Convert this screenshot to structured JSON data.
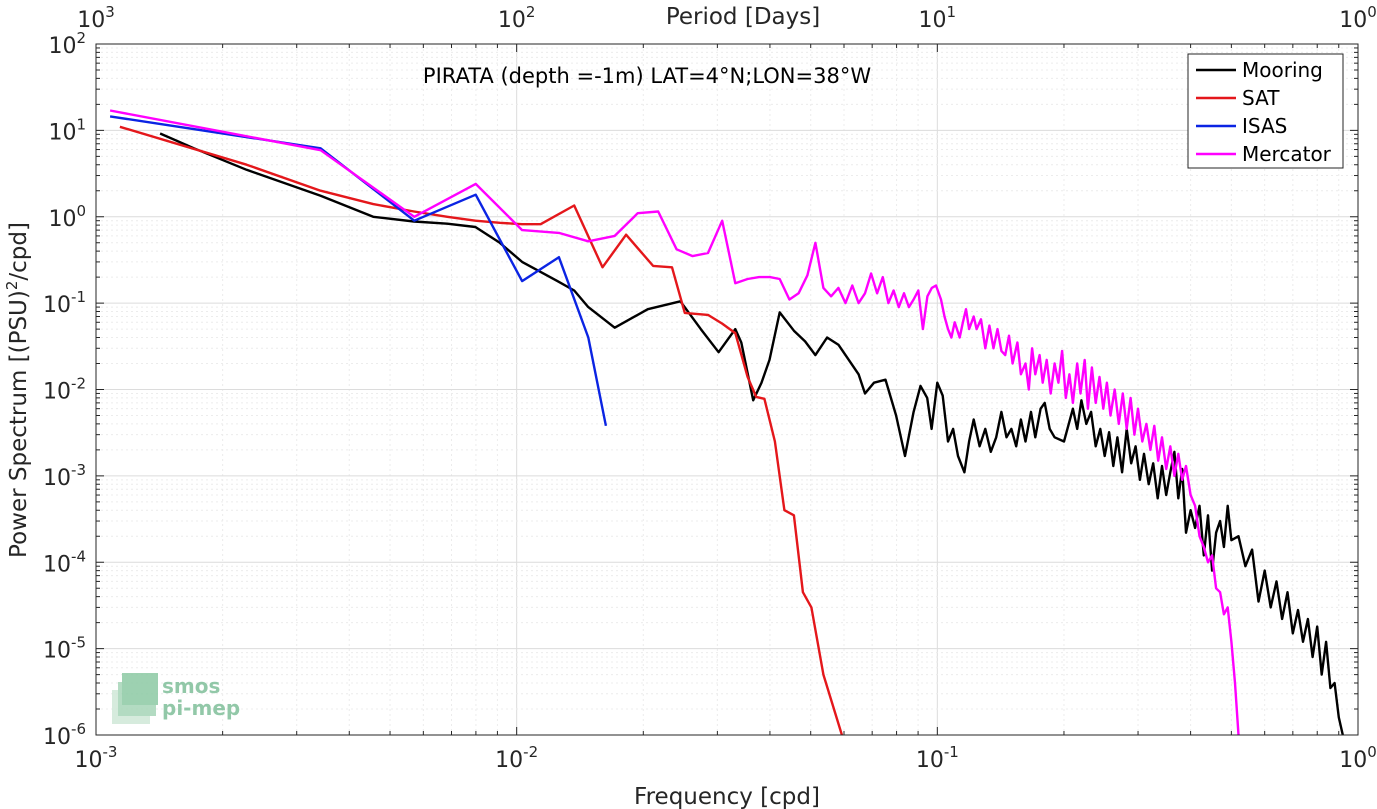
{
  "chart_data": {
    "type": "line",
    "title": "PIRATA (depth =-1m) LAT=4°N;LON=38°W",
    "xlabel": "Frequency [cpd]",
    "ylabel": "Power Spectrum [(PSU)^2/cpd]",
    "ylabel_main": "Power Spectrum [(PSU)",
    "ylabel_sup": "2",
    "ylabel_tail": "/cpd]",
    "x2label": "Period [Days]",
    "x_scale": "log",
    "y_scale": "log",
    "xlim": [
      0.001,
      1
    ],
    "ylim": [
      1e-06,
      100
    ],
    "grid": true,
    "legend_position": "top-right",
    "x_ticks": [
      {
        "base": "10",
        "exp": "-3"
      },
      {
        "base": "10",
        "exp": "-2"
      },
      {
        "base": "10",
        "exp": "-1"
      },
      {
        "base": "10",
        "exp": "0"
      }
    ],
    "y_ticks": [
      {
        "base": "10",
        "exp": "-6"
      },
      {
        "base": "10",
        "exp": "-5"
      },
      {
        "base": "10",
        "exp": "-4"
      },
      {
        "base": "10",
        "exp": "-3"
      },
      {
        "base": "10",
        "exp": "-2"
      },
      {
        "base": "10",
        "exp": "-1"
      },
      {
        "base": "10",
        "exp": "0"
      },
      {
        "base": "10",
        "exp": "1"
      },
      {
        "base": "10",
        "exp": "2"
      }
    ],
    "x2_ticks": [
      {
        "base": "10",
        "exp": "3"
      },
      {
        "base": "10",
        "exp": "2"
      },
      {
        "base": "10",
        "exp": "1"
      },
      {
        "base": "10",
        "exp": "0"
      }
    ],
    "series": [
      {
        "name": "Mooring",
        "color": "#000000",
        "points": [
          [
            0.00142,
            9.2
          ],
          [
            0.00171,
            6.2
          ],
          [
            0.00228,
            3.5
          ],
          [
            0.00342,
            1.75
          ],
          [
            0.00456,
            1.0
          ],
          [
            0.0057,
            0.88
          ],
          [
            0.00684,
            0.83
          ],
          [
            0.00798,
            0.76
          ],
          [
            0.00912,
            0.5
          ],
          [
            0.0103,
            0.3
          ],
          [
            0.0114,
            0.23
          ],
          [
            0.0125,
            0.18
          ],
          [
            0.0137,
            0.14
          ],
          [
            0.0148,
            0.09
          ],
          [
            0.0171,
            0.052
          ],
          [
            0.0205,
            0.085
          ],
          [
            0.0245,
            0.105
          ],
          [
            0.0274,
            0.05
          ],
          [
            0.0302,
            0.027
          ],
          [
            0.0331,
            0.05
          ],
          [
            0.0342,
            0.035
          ],
          [
            0.0365,
            0.0075
          ],
          [
            0.0382,
            0.012
          ],
          [
            0.0399,
            0.022
          ],
          [
            0.0422,
            0.078
          ],
          [
            0.0456,
            0.048
          ],
          [
            0.0485,
            0.036
          ],
          [
            0.0513,
            0.025
          ],
          [
            0.0547,
            0.04
          ],
          [
            0.0582,
            0.033
          ],
          [
            0.0605,
            0.025
          ],
          [
            0.065,
            0.015
          ],
          [
            0.0673,
            0.009
          ],
          [
            0.0707,
            0.012
          ],
          [
            0.0753,
            0.013
          ],
          [
            0.0798,
            0.005
          ],
          [
            0.0838,
            0.0017
          ],
          [
            0.0878,
            0.0055
          ],
          [
            0.0912,
            0.011
          ],
          [
            0.0946,
            0.008
          ],
          [
            0.0969,
            0.0035
          ],
          [
            0.1,
            0.012
          ],
          [
            0.103,
            0.0085
          ],
          [
            0.106,
            0.0025
          ],
          [
            0.109,
            0.0035
          ],
          [
            0.112,
            0.0017
          ],
          [
            0.116,
            0.0011
          ],
          [
            0.119,
            0.0025
          ],
          [
            0.122,
            0.0045
          ],
          [
            0.126,
            0.0022
          ],
          [
            0.13,
            0.0035
          ],
          [
            0.134,
            0.0019
          ],
          [
            0.138,
            0.0028
          ],
          [
            0.142,
            0.0055
          ],
          [
            0.146,
            0.0028
          ],
          [
            0.15,
            0.0035
          ],
          [
            0.154,
            0.0022
          ],
          [
            0.158,
            0.0045
          ],
          [
            0.162,
            0.0025
          ],
          [
            0.167,
            0.0055
          ],
          [
            0.171,
            0.0028
          ],
          [
            0.176,
            0.006
          ],
          [
            0.18,
            0.007
          ],
          [
            0.185,
            0.0035
          ],
          [
            0.19,
            0.0028
          ],
          [
            0.2,
            0.0025
          ],
          [
            0.21,
            0.006
          ],
          [
            0.215,
            0.0035
          ],
          [
            0.22,
            0.0075
          ],
          [
            0.226,
            0.004
          ],
          [
            0.232,
            0.0055
          ],
          [
            0.238,
            0.0022
          ],
          [
            0.244,
            0.0035
          ],
          [
            0.25,
            0.0017
          ],
          [
            0.256,
            0.0032
          ],
          [
            0.262,
            0.0013
          ],
          [
            0.268,
            0.0028
          ],
          [
            0.275,
            0.0011
          ],
          [
            0.282,
            0.0035
          ],
          [
            0.289,
            0.0014
          ],
          [
            0.296,
            0.0022
          ],
          [
            0.303,
            0.0009
          ],
          [
            0.31,
            0.0018
          ],
          [
            0.318,
            0.0008
          ],
          [
            0.326,
            0.0014
          ],
          [
            0.334,
            0.00055
          ],
          [
            0.342,
            0.0013
          ],
          [
            0.35,
            0.0006
          ],
          [
            0.358,
            0.0011
          ],
          [
            0.366,
            0.0019
          ],
          [
            0.374,
            0.00055
          ],
          [
            0.382,
            0.0012
          ],
          [
            0.39,
            0.00022
          ],
          [
            0.4,
            0.0004
          ],
          [
            0.41,
            0.00025
          ],
          [
            0.42,
            0.00045
          ],
          [
            0.43,
            0.00012
          ],
          [
            0.44,
            0.00035
          ],
          [
            0.45,
            8e-05
          ],
          [
            0.46,
            0.00022
          ],
          [
            0.47,
            0.0003
          ],
          [
            0.48,
            0.00015
          ],
          [
            0.49,
            0.00045
          ],
          [
            0.5,
            0.00018
          ],
          [
            0.52,
            0.0002
          ],
          [
            0.54,
            9e-05
          ],
          [
            0.56,
            0.00014
          ],
          [
            0.58,
            3.5e-05
          ],
          [
            0.6,
            8e-05
          ],
          [
            0.62,
            3e-05
          ],
          [
            0.64,
            6e-05
          ],
          [
            0.66,
            2.2e-05
          ],
          [
            0.68,
            4.5e-05
          ],
          [
            0.7,
            1.5e-05
          ],
          [
            0.72,
            2.8e-05
          ],
          [
            0.74,
            1.2e-05
          ],
          [
            0.76,
            2.2e-05
          ],
          [
            0.78,
            8e-06
          ],
          [
            0.8,
            1.8e-05
          ],
          [
            0.82,
            5e-06
          ],
          [
            0.84,
            1.2e-05
          ],
          [
            0.86,
            3.5e-06
          ],
          [
            0.88,
            4e-06
          ],
          [
            0.9,
            1.6e-06
          ],
          [
            0.92,
            1e-06
          ]
        ]
      },
      {
        "name": "SAT",
        "color": "#e4171b",
        "points": [
          [
            0.00114,
            11.0
          ],
          [
            0.00228,
            4.0
          ],
          [
            0.00342,
            2.0
          ],
          [
            0.00456,
            1.4
          ],
          [
            0.0057,
            1.15
          ],
          [
            0.00684,
            1.0
          ],
          [
            0.00798,
            0.9
          ],
          [
            0.00912,
            0.85
          ],
          [
            0.0103,
            0.82
          ],
          [
            0.0114,
            0.82
          ],
          [
            0.0137,
            1.35
          ],
          [
            0.016,
            0.26
          ],
          [
            0.0182,
            0.62
          ],
          [
            0.0211,
            0.27
          ],
          [
            0.0234,
            0.26
          ],
          [
            0.0251,
            0.077
          ],
          [
            0.0285,
            0.073
          ],
          [
            0.0308,
            0.058
          ],
          [
            0.0331,
            0.045
          ],
          [
            0.0354,
            0.014
          ],
          [
            0.0371,
            0.0082
          ],
          [
            0.0388,
            0.0078
          ],
          [
            0.0411,
            0.0025
          ],
          [
            0.0433,
            0.0004
          ],
          [
            0.0456,
            0.00035
          ],
          [
            0.0479,
            4.5e-05
          ],
          [
            0.0502,
            3e-05
          ],
          [
            0.0536,
            5e-06
          ],
          [
            0.0593,
            1e-06
          ]
        ]
      },
      {
        "name": "ISAS",
        "color": "#0b24e3",
        "points": [
          [
            0.00108,
            14.5
          ],
          [
            0.00342,
            6.2
          ],
          [
            0.00571,
            0.9
          ],
          [
            0.00799,
            1.8
          ],
          [
            0.0103,
            0.18
          ],
          [
            0.0126,
            0.34
          ],
          [
            0.0148,
            0.04
          ],
          [
            0.0163,
            0.0038
          ]
        ]
      },
      {
        "name": "Mercator",
        "color": "#ff00ff",
        "points": [
          [
            0.00108,
            17.0
          ],
          [
            0.00342,
            5.9
          ],
          [
            0.00571,
            1.0
          ],
          [
            0.00799,
            2.4
          ],
          [
            0.0103,
            0.7
          ],
          [
            0.0126,
            0.65
          ],
          [
            0.0148,
            0.52
          ],
          [
            0.0171,
            0.6
          ],
          [
            0.0194,
            1.1
          ],
          [
            0.0217,
            1.15
          ],
          [
            0.024,
            0.42
          ],
          [
            0.0262,
            0.35
          ],
          [
            0.0285,
            0.38
          ],
          [
            0.0308,
            0.9
          ],
          [
            0.0331,
            0.17
          ],
          [
            0.0354,
            0.19
          ],
          [
            0.0377,
            0.2
          ],
          [
            0.04,
            0.2
          ],
          [
            0.0422,
            0.19
          ],
          [
            0.0445,
            0.11
          ],
          [
            0.0468,
            0.13
          ],
          [
            0.0491,
            0.21
          ],
          [
            0.0513,
            0.5
          ],
          [
            0.0536,
            0.15
          ],
          [
            0.0559,
            0.12
          ],
          [
            0.0582,
            0.15
          ],
          [
            0.0605,
            0.1
          ],
          [
            0.0628,
            0.16
          ],
          [
            0.065,
            0.1
          ],
          [
            0.0673,
            0.13
          ],
          [
            0.0696,
            0.22
          ],
          [
            0.0719,
            0.13
          ],
          [
            0.0742,
            0.2
          ],
          [
            0.0765,
            0.1
          ],
          [
            0.0787,
            0.14
          ],
          [
            0.081,
            0.09
          ],
          [
            0.0833,
            0.13
          ],
          [
            0.0856,
            0.09
          ],
          [
            0.0878,
            0.11
          ],
          [
            0.0901,
            0.14
          ],
          [
            0.0924,
            0.05
          ],
          [
            0.0947,
            0.12
          ],
          [
            0.097,
            0.15
          ],
          [
            0.0993,
            0.16
          ],
          [
            0.102,
            0.11
          ],
          [
            0.104,
            0.07
          ],
          [
            0.106,
            0.05
          ],
          [
            0.108,
            0.04
          ],
          [
            0.11,
            0.06
          ],
          [
            0.113,
            0.04
          ],
          [
            0.115,
            0.06
          ],
          [
            0.117,
            0.085
          ],
          [
            0.119,
            0.05
          ],
          [
            0.122,
            0.07
          ],
          [
            0.124,
            0.05
          ],
          [
            0.127,
            0.065
          ],
          [
            0.13,
            0.03
          ],
          [
            0.133,
            0.055
          ],
          [
            0.136,
            0.03
          ],
          [
            0.139,
            0.05
          ],
          [
            0.142,
            0.028
          ],
          [
            0.145,
            0.025
          ],
          [
            0.148,
            0.042
          ],
          [
            0.151,
            0.02
          ],
          [
            0.155,
            0.035
          ],
          [
            0.158,
            0.015
          ],
          [
            0.162,
            0.02
          ],
          [
            0.165,
            0.01
          ],
          [
            0.168,
            0.03
          ],
          [
            0.171,
            0.015
          ],
          [
            0.175,
            0.025
          ],
          [
            0.178,
            0.012
          ],
          [
            0.182,
            0.022
          ],
          [
            0.186,
            0.009
          ],
          [
            0.19,
            0.02
          ],
          [
            0.194,
            0.012
          ],
          [
            0.198,
            0.028
          ],
          [
            0.202,
            0.008
          ],
          [
            0.206,
            0.015
          ],
          [
            0.21,
            0.007
          ],
          [
            0.215,
            0.02
          ],
          [
            0.219,
            0.009
          ],
          [
            0.224,
            0.022
          ],
          [
            0.228,
            0.006
          ],
          [
            0.233,
            0.018
          ],
          [
            0.238,
            0.007
          ],
          [
            0.243,
            0.014
          ],
          [
            0.248,
            0.006
          ],
          [
            0.253,
            0.012
          ],
          [
            0.258,
            0.005
          ],
          [
            0.264,
            0.01
          ],
          [
            0.27,
            0.004
          ],
          [
            0.276,
            0.009
          ],
          [
            0.282,
            0.0035
          ],
          [
            0.288,
            0.008
          ],
          [
            0.294,
            0.003
          ],
          [
            0.3,
            0.006
          ],
          [
            0.307,
            0.0025
          ],
          [
            0.314,
            0.004
          ],
          [
            0.321,
            0.002
          ],
          [
            0.328,
            0.0038
          ],
          [
            0.335,
            0.0015
          ],
          [
            0.342,
            0.0028
          ],
          [
            0.35,
            0.0012
          ],
          [
            0.358,
            0.0022
          ],
          [
            0.366,
            0.001
          ],
          [
            0.374,
            0.0018
          ],
          [
            0.382,
            0.0009
          ],
          [
            0.39,
            0.0013
          ],
          [
            0.4,
            0.0006
          ],
          [
            0.41,
            0.00045
          ],
          [
            0.42,
            0.0002
          ],
          [
            0.43,
            0.00015
          ],
          [
            0.44,
            0.0001
          ],
          [
            0.45,
            0.00012
          ],
          [
            0.46,
            5e-05
          ],
          [
            0.47,
            4.5e-05
          ],
          [
            0.48,
            2.5e-05
          ],
          [
            0.49,
            3e-05
          ],
          [
            0.5,
            1.2e-05
          ],
          [
            0.51,
            4e-06
          ],
          [
            0.52,
            1e-06
          ]
        ]
      }
    ]
  },
  "logo": {
    "line1": "smos",
    "line2": "pi-mep"
  }
}
